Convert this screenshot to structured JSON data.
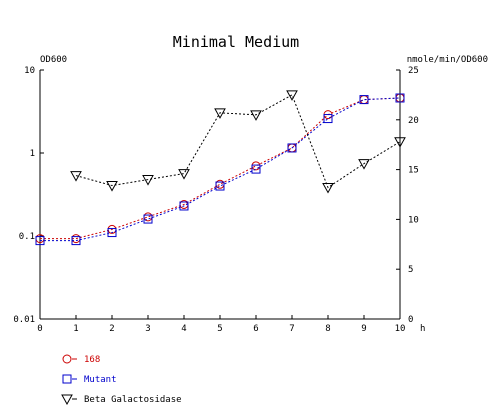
{
  "chart_data": {
    "type": "line",
    "title": "Minimal Medium",
    "x_unit": "h",
    "left_axis": {
      "label": "OD600",
      "scale": "log",
      "range": [
        0.01,
        10
      ],
      "ticks": [
        0.01,
        0.1,
        1,
        10
      ],
      "tick_labels": [
        "0.01",
        "0.1",
        "1",
        "10"
      ]
    },
    "right_axis": {
      "label": "nmole/min/OD600",
      "scale": "linear",
      "range": [
        0,
        25
      ],
      "ticks": [
        0,
        5,
        10,
        15,
        20,
        25
      ],
      "tick_labels": [
        "0",
        "5",
        "10",
        "15",
        "20",
        "25"
      ]
    },
    "x_axis": {
      "range": [
        0,
        10
      ],
      "ticks": [
        0,
        1,
        2,
        3,
        4,
        5,
        6,
        7,
        8,
        9,
        10
      ],
      "tick_labels": [
        "0",
        "1",
        "2",
        "3",
        "4",
        "5",
        "6",
        "7",
        "8",
        "9",
        "10"
      ]
    },
    "grid": false,
    "legend_position": "bottom-left",
    "series": [
      {
        "name": "168",
        "axis": "left",
        "marker": "circle",
        "color": "#cc0000",
        "x": [
          0,
          1,
          2,
          3,
          4,
          5,
          6,
          7,
          8,
          9,
          10
        ],
        "y": [
          0.093,
          0.093,
          0.12,
          0.17,
          0.24,
          0.42,
          0.7,
          1.15,
          2.9,
          4.4,
          4.6
        ]
      },
      {
        "name": "Mutant",
        "axis": "left",
        "marker": "square",
        "color": "#0000cc",
        "x": [
          0,
          1,
          2,
          3,
          4,
          5,
          6,
          7,
          8,
          9,
          10
        ],
        "y": [
          0.088,
          0.088,
          0.11,
          0.16,
          0.23,
          0.4,
          0.64,
          1.15,
          2.6,
          4.4,
          4.6
        ]
      },
      {
        "name": "Beta Galactosidase",
        "axis": "right",
        "marker": "triangle-down",
        "color": "#000000",
        "x": [
          1,
          2,
          3,
          4,
          5,
          6,
          7,
          8,
          9,
          10
        ],
        "y": [
          14.4,
          13.4,
          14.0,
          14.6,
          20.7,
          20.5,
          22.5,
          13.2,
          15.6,
          17.8
        ]
      }
    ]
  }
}
